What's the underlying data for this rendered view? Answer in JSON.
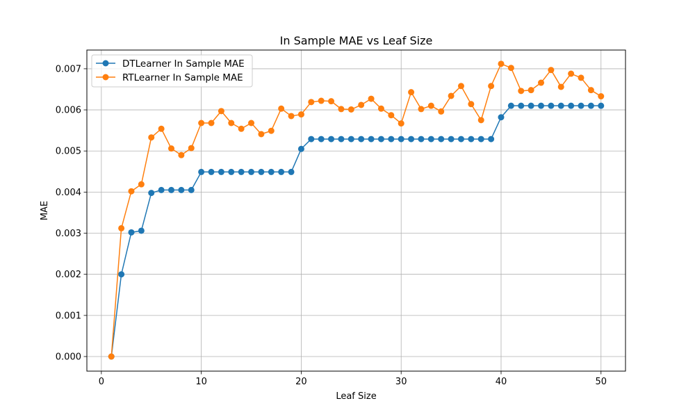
{
  "chart_data": {
    "type": "line",
    "title": "In Sample MAE vs Leaf Size",
    "xlabel": "Leaf Size",
    "ylabel": "MAE",
    "xlim": [
      -1.45,
      52.45
    ],
    "ylim": [
      -0.000355,
      0.007455
    ],
    "xticks": [
      0,
      10,
      20,
      30,
      40,
      50
    ],
    "xtick_labels": [
      "0",
      "10",
      "20",
      "30",
      "40",
      "50"
    ],
    "yticks": [
      0,
      0.001,
      0.002,
      0.003,
      0.004,
      0.005,
      0.006,
      0.007
    ],
    "ytick_labels": [
      "0.000",
      "0.001",
      "0.002",
      "0.003",
      "0.004",
      "0.005",
      "0.006",
      "0.007"
    ],
    "grid": true,
    "legend_position": "top-left",
    "x": [
      1,
      2,
      3,
      4,
      5,
      6,
      7,
      8,
      9,
      10,
      11,
      12,
      13,
      14,
      15,
      16,
      17,
      18,
      19,
      20,
      21,
      22,
      23,
      24,
      25,
      26,
      27,
      28,
      29,
      30,
      31,
      32,
      33,
      34,
      35,
      36,
      37,
      38,
      39,
      40,
      41,
      42,
      43,
      44,
      45,
      46,
      47,
      48,
      49,
      50
    ],
    "series": [
      {
        "name": "DTLearner In Sample MAE",
        "color": "#1f77b4",
        "values": [
          0.0,
          0.002,
          0.00302,
          0.00306,
          0.00398,
          0.00405,
          0.00405,
          0.00405,
          0.00405,
          0.00449,
          0.00449,
          0.00449,
          0.00449,
          0.00449,
          0.00449,
          0.00449,
          0.00449,
          0.00449,
          0.00449,
          0.00505,
          0.00529,
          0.00529,
          0.00529,
          0.00529,
          0.00529,
          0.00529,
          0.00529,
          0.00529,
          0.00529,
          0.00529,
          0.00529,
          0.00529,
          0.00529,
          0.00529,
          0.00529,
          0.00529,
          0.00529,
          0.00529,
          0.00529,
          0.00582,
          0.0061,
          0.0061,
          0.0061,
          0.0061,
          0.0061,
          0.0061,
          0.0061,
          0.0061,
          0.0061,
          0.0061
        ]
      },
      {
        "name": "RTLearner In Sample MAE",
        "color": "#ff7f0e",
        "values": [
          0.0,
          0.00312,
          0.00402,
          0.00419,
          0.00533,
          0.00554,
          0.00506,
          0.0049,
          0.00507,
          0.00568,
          0.00568,
          0.00597,
          0.00568,
          0.00554,
          0.00568,
          0.00541,
          0.00549,
          0.00603,
          0.00585,
          0.00589,
          0.00619,
          0.00622,
          0.00621,
          0.00602,
          0.00601,
          0.00612,
          0.00627,
          0.00603,
          0.00587,
          0.00567,
          0.00643,
          0.00602,
          0.0061,
          0.00596,
          0.00634,
          0.00658,
          0.00614,
          0.00575,
          0.00658,
          0.00712,
          0.00702,
          0.00646,
          0.00648,
          0.00666,
          0.00697,
          0.00656,
          0.00688,
          0.00678,
          0.00648,
          0.00633
        ]
      }
    ]
  }
}
